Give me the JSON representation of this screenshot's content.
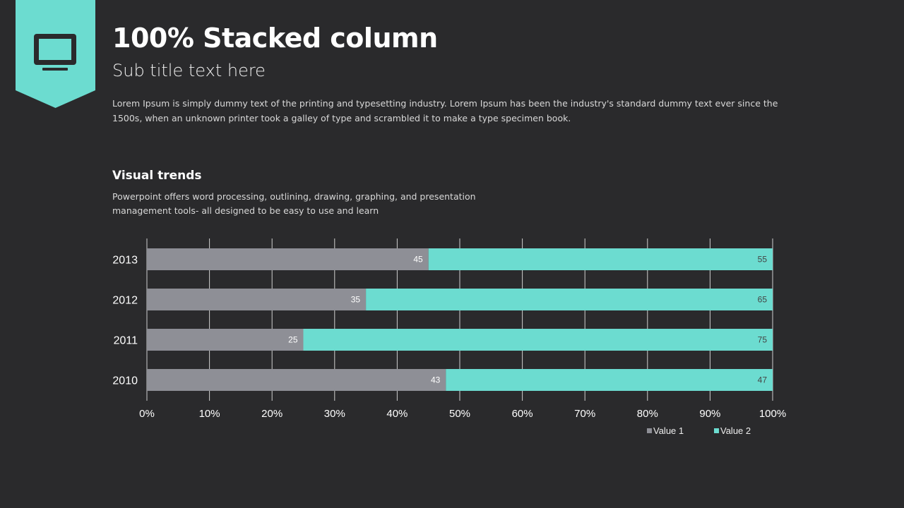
{
  "header": {
    "title": "100% Stacked column",
    "subtitle": "Sub title text here",
    "body": "Lorem Ipsum is simply dummy text of the printing and typesetting industry. Lorem Ipsum has been the industry's standard dummy text ever since the 1500s, when an unknown printer took a galley of type and scrambled it to make a type specimen book.",
    "icon": "monitor-icon"
  },
  "section": {
    "heading": "Visual trends",
    "description": "Powerpoint offers word processing, outlining, drawing, graphing, and presentation management tools- all designed to be easy to use and learn"
  },
  "colors": {
    "accent": "#6cdcd0",
    "value1": "#8e8f96",
    "background": "#2a2a2c"
  },
  "chart_data": {
    "type": "bar",
    "orientation": "horizontal",
    "stacked": "percent",
    "categories": [
      "2013",
      "2012",
      "2011",
      "2010"
    ],
    "series": [
      {
        "name": "Value  1",
        "values": [
          45,
          35,
          25,
          43
        ],
        "color": "#8e8f96"
      },
      {
        "name": "Value  2",
        "values": [
          55,
          65,
          75,
          47
        ],
        "color": "#6cdcd0"
      }
    ],
    "xticks": [
      "0%",
      "10%",
      "20%",
      "30%",
      "40%",
      "50%",
      "60%",
      "70%",
      "80%",
      "90%",
      "100%"
    ],
    "xlim": [
      0,
      100
    ],
    "grid": true,
    "legend": "bottom-right"
  }
}
